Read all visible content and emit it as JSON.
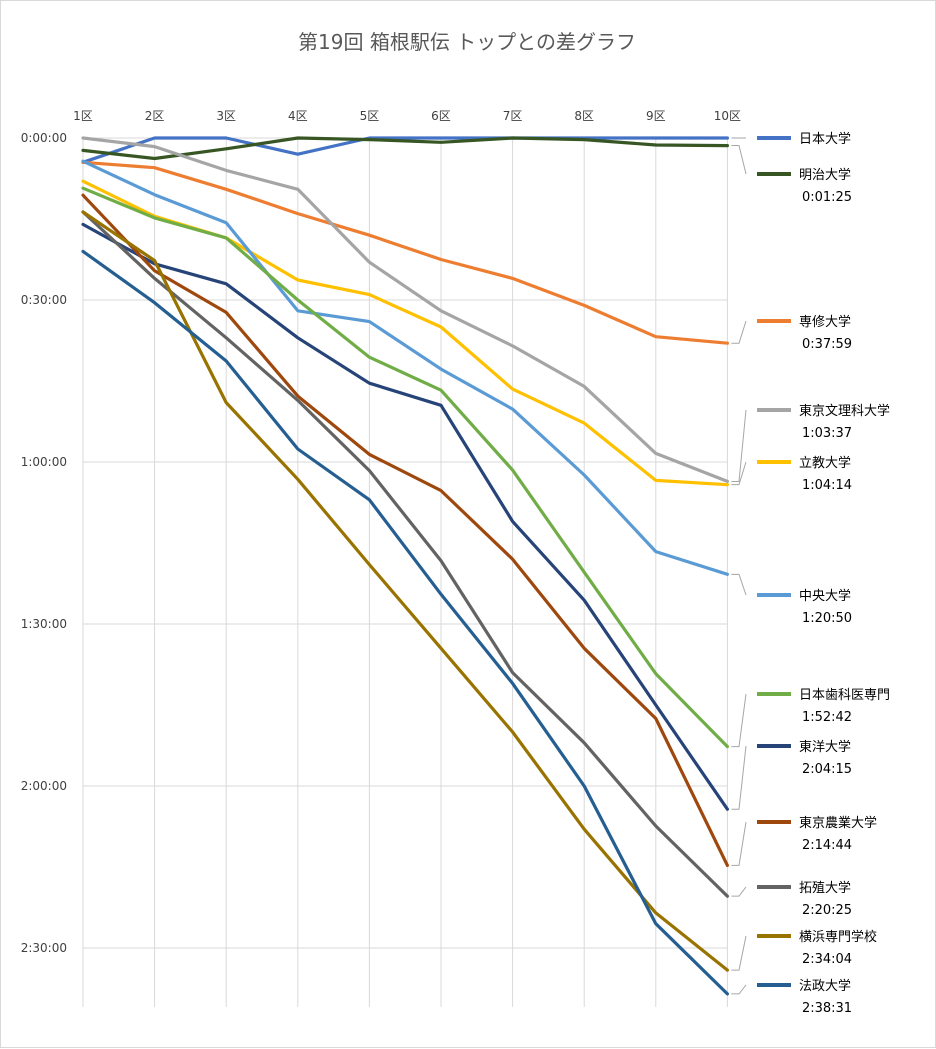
{
  "chart_data": {
    "type": "line",
    "title": "第19回 箱根駅伝 トップとの差グラフ",
    "x_labels": [
      "1区",
      "2区",
      "3区",
      "4区",
      "5区",
      "6区",
      "7区",
      "8区",
      "9区",
      "10区"
    ],
    "y_ticks": [
      "0:00:00",
      "0:30:00",
      "1:00:00",
      "1:30:00",
      "2:00:00",
      "2:30:00"
    ],
    "y_unit": "minutes behind leader (axis reversed, downward = larger gap)",
    "ylim": [
      0,
      162
    ],
    "grid": true,
    "legend_placement": "right",
    "series": [
      {
        "name": "日本大学",
        "color": "#4472c4",
        "final": "",
        "values": [
          4.5,
          0,
          0,
          3,
          0,
          0,
          0,
          0,
          0,
          0
        ]
      },
      {
        "name": "明治大学",
        "color": "#375623",
        "final": "0:01:25",
        "values": [
          2.3,
          3.8,
          2,
          0,
          0.3,
          0.8,
          0,
          0.3,
          1.3,
          1.4
        ]
      },
      {
        "name": "専修大学",
        "color": "#ed7d31",
        "final": "0:37:59",
        "values": [
          4.5,
          5.5,
          9.5,
          14,
          18,
          22.5,
          26,
          31,
          36.8,
          38
        ]
      },
      {
        "name": "東京文理科大学",
        "color": "#a5a5a5",
        "final": "1:03:37",
        "values": [
          0,
          1.6,
          6,
          9.5,
          23,
          32,
          38.5,
          46,
          58.4,
          63.6
        ]
      },
      {
        "name": "立教大学",
        "color": "#ffc000",
        "final": "1:04:14",
        "values": [
          8,
          14.5,
          18.5,
          26.3,
          29,
          35,
          46.5,
          52.8,
          63.4,
          64.2
        ]
      },
      {
        "name": "中央大学",
        "color": "#5b9bd5",
        "final": "1:20:50",
        "values": [
          4.3,
          10.5,
          15.7,
          32,
          34,
          42.8,
          50.2,
          62.4,
          76.6,
          80.8
        ]
      },
      {
        "name": "日本歯科医専門",
        "color": "#70ad47",
        "final": "1:52:42",
        "values": [
          9.3,
          14.8,
          18.5,
          30,
          40.6,
          46.7,
          61.5,
          80.4,
          99.2,
          112.7
        ]
      },
      {
        "name": "東洋大学",
        "color": "#264478",
        "final": "2:04:15",
        "values": [
          16,
          23.3,
          27,
          37,
          45.4,
          49.5,
          71,
          85.6,
          105,
          124.3
        ]
      },
      {
        "name": "東京農業大学",
        "color": "#9e480e",
        "final": "2:14:44",
        "values": [
          10.6,
          24.6,
          32.3,
          47.8,
          58.6,
          65.3,
          78,
          94.5,
          107.5,
          134.7
        ]
      },
      {
        "name": "拓殖大学",
        "color": "#636363",
        "final": "2:20:25",
        "values": [
          13.7,
          26,
          37,
          48.6,
          61.6,
          78.3,
          99,
          112,
          127.4,
          140.4
        ]
      },
      {
        "name": "横浜専門学校",
        "color": "#997300",
        "final": "2:34:04",
        "values": [
          13.7,
          22.7,
          49,
          63.2,
          79,
          94.5,
          110,
          128,
          143.5,
          154.1
        ]
      },
      {
        "name": "法政大学",
        "color": "#255e91",
        "final": "2:38:31",
        "values": [
          21,
          30.5,
          41.3,
          57.6,
          67,
          84.5,
          101,
          120,
          145.5,
          158.5
        ]
      }
    ]
  }
}
